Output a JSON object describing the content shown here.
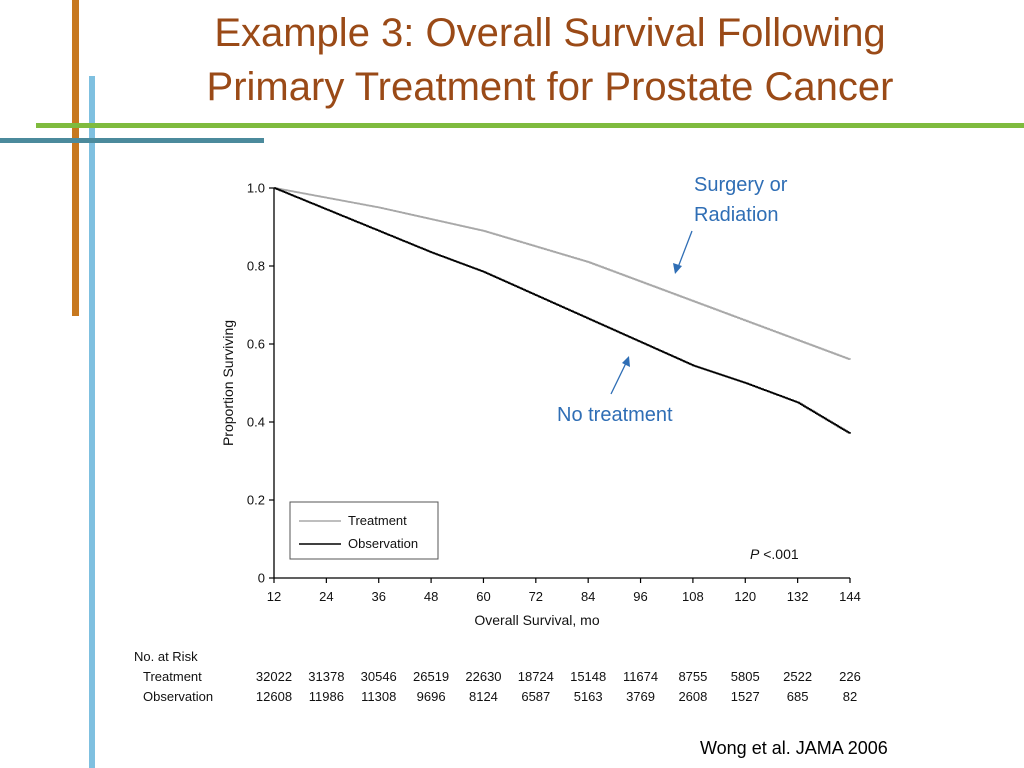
{
  "slide": {
    "title_line1": "Example 3: Overall Survival Following",
    "title_line2": "Primary Treatment for Prostate Cancer",
    "citation": "Wong et al. JAMA 2006",
    "accent_colors": {
      "orange": "#c7781f",
      "light_blue": "#7fc0e0",
      "green": "#7fbb3e",
      "steel_blue": "#4b8a9c",
      "title": "#9a4a17",
      "annotation": "#2f6eb5"
    }
  },
  "annotations": {
    "surgery_line1": "Surgery or",
    "surgery_line2": "Radiation",
    "no_treatment": "No treatment",
    "p_value_prefix": "P",
    "p_value_suffix": " <.001"
  },
  "risk_table": {
    "header": "No. at Risk",
    "rows": [
      {
        "label": "Treatment",
        "values": [
          "32022",
          "31378",
          "30546",
          "26519",
          "22630",
          "18724",
          "15148",
          "11674",
          "8755",
          "5805",
          "2522",
          "226"
        ]
      },
      {
        "label": "Observation",
        "values": [
          "12608",
          "11986",
          "11308",
          "9696",
          "8124",
          "6587",
          "5163",
          "3769",
          "2608",
          "1527",
          "685",
          "82"
        ]
      }
    ]
  },
  "chart_data": {
    "type": "line",
    "title": "",
    "xlabel": "Overall Survival, mo",
    "ylabel": "Proportion Surviving",
    "xlim": [
      12,
      144
    ],
    "ylim": [
      0,
      1.0
    ],
    "x_ticks": [
      12,
      24,
      36,
      48,
      60,
      72,
      84,
      96,
      108,
      120,
      132,
      144
    ],
    "y_ticks": [
      0,
      0.2,
      0.4,
      0.6,
      0.8,
      1.0
    ],
    "y_tick_labels": [
      "0",
      "0.2",
      "0.4",
      "0.6",
      "0.8",
      "1.0"
    ],
    "legend_position": "lower-left",
    "grid": false,
    "series": [
      {
        "name": "Treatment",
        "color": "#a8a8a8",
        "x": [
          12,
          24,
          36,
          48,
          60,
          72,
          84,
          96,
          108,
          120,
          132,
          144
        ],
        "y": [
          1.0,
          0.975,
          0.95,
          0.92,
          0.89,
          0.85,
          0.81,
          0.76,
          0.71,
          0.66,
          0.61,
          0.56
        ]
      },
      {
        "name": "Observation",
        "color": "#000000",
        "x": [
          12,
          24,
          36,
          48,
          60,
          72,
          84,
          96,
          108,
          120,
          132,
          144
        ],
        "y": [
          1.0,
          0.945,
          0.89,
          0.835,
          0.785,
          0.725,
          0.665,
          0.605,
          0.545,
          0.5,
          0.45,
          0.37
        ]
      }
    ]
  }
}
